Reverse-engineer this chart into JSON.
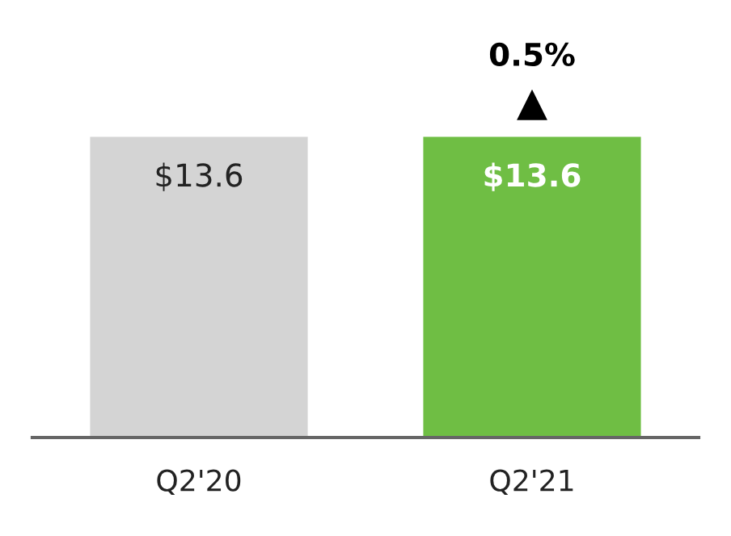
{
  "chart_data": {
    "type": "bar",
    "categories": [
      "Q2'20",
      "Q2'21"
    ],
    "values": [
      13.6,
      13.6
    ],
    "value_labels": [
      "$13.6",
      "$13.6"
    ],
    "colors": [
      "#d4d4d4",
      "#6fbe44"
    ],
    "annotations": [
      {
        "text": "0.5%",
        "x": "Q2'21",
        "y": 13.6
      }
    ],
    "grid": false,
    "legend": false
  }
}
